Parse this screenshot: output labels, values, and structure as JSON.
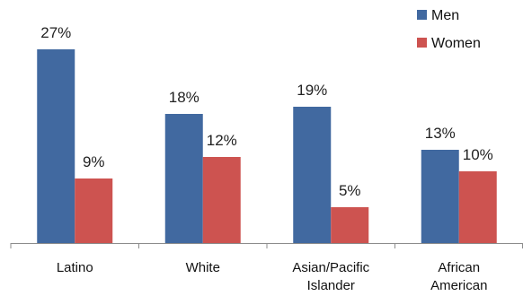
{
  "chart_data": {
    "type": "bar",
    "title": "",
    "xlabel": "",
    "ylabel": "",
    "categories": [
      [
        "Latino"
      ],
      [
        "White"
      ],
      [
        "Asian/Pacific",
        "Islander"
      ],
      [
        "African",
        "American"
      ]
    ],
    "series": [
      {
        "name": "Men",
        "values": [
          27,
          18,
          19,
          13
        ],
        "labels": [
          "27%",
          "18%",
          "19%",
          "13%"
        ],
        "color": "#4169A0"
      },
      {
        "name": "Women",
        "values": [
          9,
          12,
          5,
          10
        ],
        "labels": [
          "9%",
          "12%",
          "5%",
          "10%"
        ],
        "color": "#CD5350"
      }
    ],
    "ylim": [
      0,
      30
    ],
    "grid": false,
    "legend_position": "top-right",
    "value_axis_visible": false
  }
}
